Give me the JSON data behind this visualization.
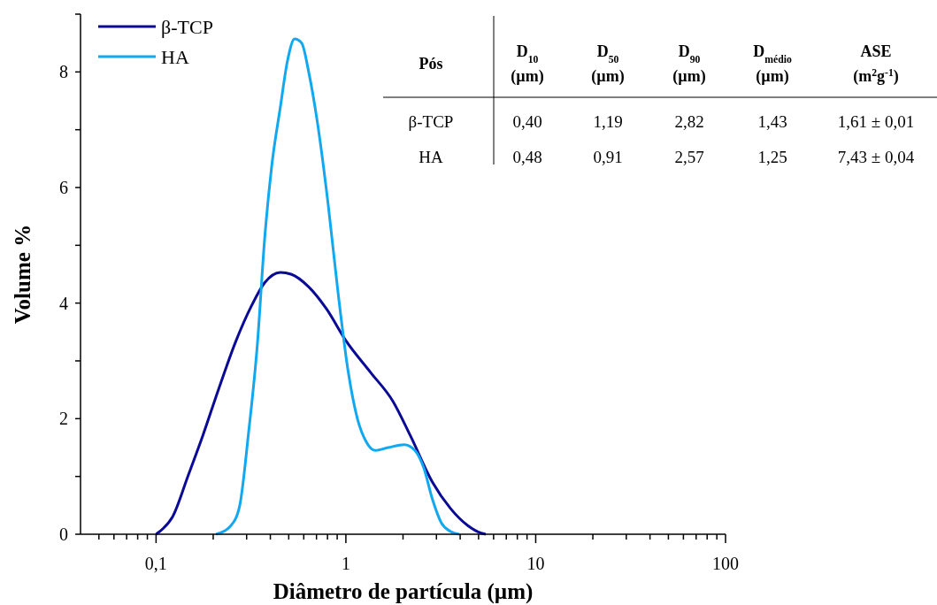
{
  "chart_data": {
    "type": "line",
    "xlabel": "Diâmetro de partícula (µm)",
    "ylabel": "Volume %",
    "log": "x",
    "xlim": [
      0.04,
      100
    ],
    "ylim": [
      0,
      9
    ],
    "xticks": [
      {
        "value": 0.05,
        "label": null
      },
      {
        "value": 0.06,
        "label": null
      },
      {
        "value": 0.07,
        "label": null
      },
      {
        "value": 0.08,
        "label": null
      },
      {
        "value": 0.09,
        "label": null
      },
      {
        "value": 0.1,
        "label": "0,1"
      },
      {
        "value": 0.2,
        "label": null
      },
      {
        "value": 0.3,
        "label": null
      },
      {
        "value": 0.4,
        "label": null
      },
      {
        "value": 0.5,
        "label": null
      },
      {
        "value": 0.6,
        "label": null
      },
      {
        "value": 0.7,
        "label": null
      },
      {
        "value": 0.8,
        "label": null
      },
      {
        "value": 0.9,
        "label": null
      },
      {
        "value": 1,
        "label": "1"
      },
      {
        "value": 2,
        "label": null
      },
      {
        "value": 3,
        "label": null
      },
      {
        "value": 4,
        "label": null
      },
      {
        "value": 5,
        "label": null
      },
      {
        "value": 6,
        "label": null
      },
      {
        "value": 7,
        "label": null
      },
      {
        "value": 8,
        "label": null
      },
      {
        "value": 9,
        "label": null
      },
      {
        "value": 10,
        "label": "10"
      },
      {
        "value": 20,
        "label": null
      },
      {
        "value": 30,
        "label": null
      },
      {
        "value": 40,
        "label": null
      },
      {
        "value": 50,
        "label": null
      },
      {
        "value": 60,
        "label": null
      },
      {
        "value": 70,
        "label": null
      },
      {
        "value": 80,
        "label": null
      },
      {
        "value": 90,
        "label": null
      },
      {
        "value": 100,
        "label": "100"
      }
    ],
    "yticks": [
      0,
      {
        "value": 1,
        "label": null
      },
      2,
      {
        "value": 3,
        "label": null
      },
      4,
      {
        "value": 5,
        "label": null
      },
      6,
      {
        "value": 7,
        "label": null
      },
      8,
      {
        "value": 9,
        "label": null
      }
    ],
    "legend": "top left",
    "grid": false,
    "series": [
      {
        "name": "β-TCP",
        "color": "#0a0a96",
        "x": [
          0.1,
          0.109,
          0.122,
          0.147,
          0.176,
          0.213,
          0.264,
          0.318,
          0.373,
          0.452,
          0.514,
          0.637,
          0.79,
          1.0,
          1.35,
          1.77,
          2.19,
          2.86,
          3.55,
          4.39,
          5.16,
          5.45
        ],
        "values": [
          0,
          0.1,
          0.3,
          1.0,
          1.7,
          2.5,
          3.35,
          3.95,
          4.35,
          4.53,
          4.5,
          4.28,
          3.9,
          3.35,
          2.8,
          2.3,
          1.7,
          0.9,
          0.45,
          0.15,
          0.02,
          0
        ]
      },
      {
        "name": "HA",
        "color": "#12a8f0",
        "x": [
          0.207,
          0.248,
          0.276,
          0.307,
          0.342,
          0.373,
          0.406,
          0.452,
          0.493,
          0.537,
          0.585,
          0.637,
          0.71,
          0.807,
          0.908,
          1.03,
          1.15,
          1.28,
          1.43,
          1.67,
          2.03,
          2.31,
          2.57,
          2.86,
          3.18,
          3.55,
          3.95
        ],
        "values": [
          0,
          0.15,
          0.5,
          1.75,
          3.3,
          5.1,
          6.35,
          7.4,
          8.2,
          8.57,
          8.5,
          8.0,
          7.1,
          5.7,
          4.2,
          2.8,
          2.0,
          1.6,
          1.45,
          1.5,
          1.55,
          1.45,
          1.15,
          0.6,
          0.2,
          0.05,
          0
        ]
      }
    ],
    "annotations": [
      "Pós",
      "D$_{10}$ (µm)",
      "D$_{50}$ (µm)",
      "D$_{90}$ (µm)",
      "D$_{médio}$ (µm)",
      "ASE (m$^{2}$g$^{-1}$)",
      "β-TCP",
      "0,40",
      "1,19",
      "2,82",
      "1,43",
      "1,61 ± 0,01",
      "HA",
      "0,48",
      "0,91",
      "2,57",
      "1,25",
      "7,43 ± 0,04"
    ]
  }
}
